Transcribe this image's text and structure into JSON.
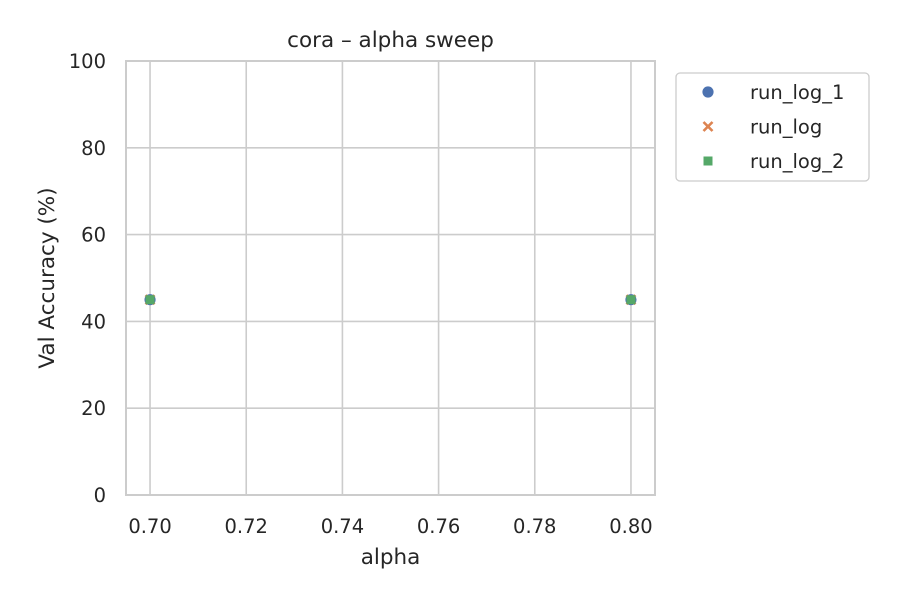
{
  "chart_data": {
    "type": "scatter",
    "title": "cora – alpha sweep",
    "xlabel": "alpha",
    "ylabel": "Val Accuracy (%)",
    "xlim": [
      0.695,
      0.805
    ],
    "ylim": [
      0,
      100
    ],
    "x_ticks": [
      0.7,
      0.72,
      0.74,
      0.76,
      0.78,
      0.8
    ],
    "x_tick_labels": [
      "0.70",
      "0.72",
      "0.74",
      "0.76",
      "0.78",
      "0.80"
    ],
    "y_ticks": [
      0,
      20,
      40,
      60,
      80,
      100
    ],
    "y_tick_labels": [
      "0",
      "20",
      "40",
      "60",
      "80",
      "100"
    ],
    "grid": true,
    "legend_position": "outside-right-top",
    "series": [
      {
        "name": "run_log_1",
        "marker": "circle",
        "color": "#4c72b0",
        "points": [
          {
            "x": 0.7,
            "y": 45
          },
          {
            "x": 0.8,
            "y": 45
          }
        ]
      },
      {
        "name": "run_log",
        "marker": "x",
        "color": "#dd8452",
        "points": [
          {
            "x": 0.7,
            "y": 45
          },
          {
            "x": 0.8,
            "y": 45
          }
        ]
      },
      {
        "name": "run_log_2",
        "marker": "square",
        "color": "#55a868",
        "points": [
          {
            "x": 0.7,
            "y": 45
          },
          {
            "x": 0.8,
            "y": 45
          }
        ]
      }
    ]
  }
}
